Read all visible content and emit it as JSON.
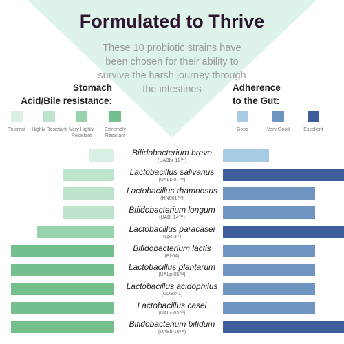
{
  "title": "Formulated to Thrive",
  "subtitle": "These 10 probiotic strains have been chosen for their ability to survive the harsh journey through the intestines",
  "colors": {
    "background_triangle": "#def4ea",
    "title": "#2f1530",
    "resistance": [
      "#d9f1e5",
      "#bfe4cc",
      "#99d3ab",
      "#74c08d"
    ],
    "adherence": [
      "#a6cbe3",
      "#6e95c1",
      "#3d5e9a"
    ]
  },
  "legend_left": {
    "title_line1": "Stomach",
    "title_line2": "Acid/Bile resistance:",
    "levels": [
      "Tolerant",
      "Highly Resistant",
      "Very Highly Resistant",
      "Extremely Resistant"
    ]
  },
  "legend_right": {
    "title_line1": "Adherence",
    "title_line2": "to the Gut:",
    "levels": [
      "Good",
      "Very Good",
      "Excellent"
    ]
  },
  "chart_data": {
    "type": "bar",
    "layout": "diverging-horizontal",
    "resistance_scale": [
      "Tolerant",
      "Highly Resistant",
      "Very Highly Resistant",
      "Extremely Resistant"
    ],
    "adherence_scale": [
      "Good",
      "Very Good",
      "Excellent"
    ],
    "strains": [
      {
        "name": "Bifidobacterium breve",
        "code": "(UABbr-11™)",
        "resistance": 1,
        "adherence": 1
      },
      {
        "name": "Lactobacillus salivarius",
        "code": "(UALs-07™)",
        "resistance": 2,
        "adherence": 3
      },
      {
        "name": "Lactobacillus rhamnosus",
        "code": "(HN001™)",
        "resistance": 2,
        "adherence": 2
      },
      {
        "name": "Bifidobacterium longum",
        "code": "(UABl-14™)",
        "resistance": 2,
        "adherence": 2
      },
      {
        "name": "Lactobacillus paracasei",
        "code": "(Lpc-37)",
        "resistance": 3,
        "adherence": 3
      },
      {
        "name": "Bifidobacterium lactis",
        "code": "(Bl-04)",
        "resistance": 4,
        "adherence": 2
      },
      {
        "name": "Lactobacillus plantarum",
        "code": "(UALp-05™)",
        "resistance": 4,
        "adherence": 2
      },
      {
        "name": "Lactobacillus acidophilus",
        "code": "(DDS®-1)",
        "resistance": 4,
        "adherence": 2
      },
      {
        "name": "Lactobacillus casei",
        "code": "(UALc-03™)",
        "resistance": 4,
        "adherence": 2
      },
      {
        "name": "Bifidobacterium bifidum",
        "code": "(UABb-10™)",
        "resistance": 4,
        "adherence": 3
      }
    ]
  }
}
